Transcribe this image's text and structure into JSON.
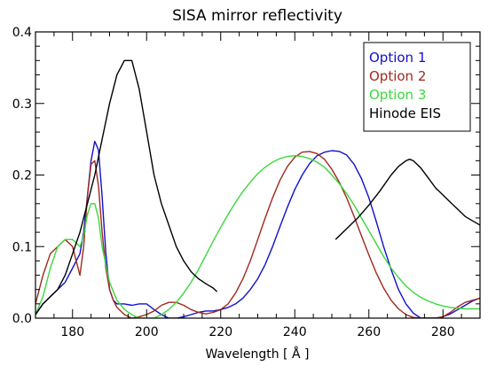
{
  "chart_data": {
    "type": "line",
    "title": "SISA mirror reflectivity",
    "xlabel": "Wavelength [ Å ]",
    "ylabel": "",
    "xlim": [
      170,
      290
    ],
    "ylim": [
      0,
      0.4
    ],
    "xticks": [
      180,
      200,
      220,
      240,
      260,
      280
    ],
    "yticks": [
      0.0,
      0.1,
      0.2,
      0.3,
      0.4
    ],
    "xtick_labels": [
      "180",
      "200",
      "220",
      "240",
      "260",
      "280"
    ],
    "ytick_labels": [
      "0.0",
      "0.1",
      "0.2",
      "0.3",
      "0.4"
    ],
    "legend_position": "top-right",
    "grid": false,
    "series": [
      {
        "name": "Option 1",
        "color": "#1010d0",
        "x": [
          170,
          172,
          174,
          176,
          178,
          180,
          182,
          183,
          184,
          185,
          186,
          187,
          188,
          189,
          190,
          191,
          192,
          194,
          196,
          198,
          200,
          202,
          204,
          206,
          208,
          210,
          212,
          214,
          216,
          218,
          220,
          222,
          224,
          226,
          228,
          230,
          232,
          234,
          236,
          238,
          240,
          242,
          244,
          246,
          248,
          250,
          252,
          254,
          256,
          258,
          260,
          262,
          264,
          266,
          268,
          270,
          272,
          274,
          276,
          278,
          280,
          282,
          284,
          286,
          288,
          290
        ],
        "y": [
          0.005,
          0.02,
          0.03,
          0.04,
          0.05,
          0.07,
          0.09,
          0.12,
          0.17,
          0.22,
          0.247,
          0.235,
          0.17,
          0.09,
          0.04,
          0.025,
          0.02,
          0.02,
          0.018,
          0.02,
          0.02,
          0.012,
          0.005,
          0.0,
          0.0,
          0.002,
          0.005,
          0.008,
          0.01,
          0.01,
          0.012,
          0.015,
          0.02,
          0.028,
          0.04,
          0.055,
          0.075,
          0.1,
          0.128,
          0.155,
          0.18,
          0.2,
          0.216,
          0.227,
          0.232,
          0.234,
          0.233,
          0.228,
          0.215,
          0.195,
          0.168,
          0.135,
          0.1,
          0.068,
          0.04,
          0.02,
          0.007,
          0.0,
          0.0,
          0.0,
          0.002,
          0.006,
          0.012,
          0.018,
          0.024,
          0.028
        ]
      },
      {
        "name": "Option 2",
        "color": "#a0281e",
        "x": [
          170,
          172,
          174,
          176,
          178,
          180,
          181,
          182,
          183,
          184,
          185,
          186,
          187,
          188,
          189,
          190,
          191,
          192,
          194,
          196,
          198,
          200,
          202,
          204,
          206,
          208,
          210,
          212,
          214,
          216,
          218,
          220,
          222,
          224,
          226,
          228,
          230,
          232,
          234,
          236,
          238,
          240,
          242,
          244,
          246,
          248,
          250,
          252,
          254,
          256,
          258,
          260,
          262,
          264,
          266,
          268,
          270,
          272,
          274,
          276,
          278,
          280,
          282,
          284,
          286,
          288,
          290
        ],
        "y": [
          0.02,
          0.06,
          0.09,
          0.1,
          0.11,
          0.1,
          0.08,
          0.06,
          0.1,
          0.17,
          0.215,
          0.22,
          0.185,
          0.12,
          0.07,
          0.04,
          0.025,
          0.015,
          0.005,
          0.0,
          0.002,
          0.005,
          0.01,
          0.018,
          0.022,
          0.022,
          0.018,
          0.012,
          0.008,
          0.006,
          0.008,
          0.012,
          0.02,
          0.035,
          0.055,
          0.08,
          0.11,
          0.14,
          0.168,
          0.193,
          0.212,
          0.225,
          0.232,
          0.233,
          0.23,
          0.222,
          0.208,
          0.19,
          0.168,
          0.142,
          0.115,
          0.088,
          0.063,
          0.042,
          0.025,
          0.013,
          0.005,
          0.001,
          0.0,
          0.0,
          0.0,
          0.002,
          0.008,
          0.016,
          0.022,
          0.025,
          0.028
        ]
      },
      {
        "name": "Option 3",
        "color": "#3cd83c",
        "x": [
          170,
          172,
          174,
          176,
          178,
          180,
          182,
          183,
          184,
          185,
          186,
          187,
          188,
          190,
          192,
          194,
          196,
          198,
          200,
          202,
          204,
          206,
          208,
          210,
          212,
          214,
          216,
          218,
          220,
          222,
          224,
          226,
          228,
          230,
          232,
          234,
          236,
          238,
          240,
          242,
          244,
          246,
          248,
          250,
          252,
          254,
          256,
          258,
          260,
          262,
          264,
          266,
          268,
          270,
          272,
          274,
          276,
          278,
          280,
          282,
          284,
          286,
          288,
          290
        ],
        "y": [
          0.005,
          0.03,
          0.07,
          0.1,
          0.11,
          0.11,
          0.1,
          0.115,
          0.145,
          0.16,
          0.16,
          0.14,
          0.1,
          0.05,
          0.025,
          0.012,
          0.005,
          0.0,
          0.0,
          0.0,
          0.005,
          0.012,
          0.022,
          0.035,
          0.05,
          0.068,
          0.088,
          0.108,
          0.127,
          0.145,
          0.162,
          0.177,
          0.19,
          0.202,
          0.211,
          0.218,
          0.223,
          0.226,
          0.227,
          0.226,
          0.223,
          0.218,
          0.211,
          0.2,
          0.188,
          0.174,
          0.158,
          0.14,
          0.122,
          0.104,
          0.086,
          0.07,
          0.057,
          0.045,
          0.036,
          0.029,
          0.024,
          0.02,
          0.017,
          0.015,
          0.014,
          0.013,
          0.013,
          0.013
        ]
      },
      {
        "name": "Hinode EIS",
        "color": "#000000",
        "segments": [
          {
            "x": [
              170,
              172,
              174,
              176,
              178,
              180,
              182,
              184,
              186,
              188,
              190,
              192,
              194,
              196,
              198,
              200,
              202,
              204,
              206,
              208,
              210,
              212,
              214,
              216,
              218,
              219
            ],
            "y": [
              0.005,
              0.02,
              0.03,
              0.04,
              0.06,
              0.09,
              0.12,
              0.16,
              0.2,
              0.25,
              0.3,
              0.34,
              0.36,
              0.36,
              0.32,
              0.26,
              0.2,
              0.16,
              0.13,
              0.1,
              0.08,
              0.065,
              0.055,
              0.048,
              0.042,
              0.037
            ]
          },
          {
            "x": [
              251,
              254,
              257,
              260,
              263,
              266,
              268,
              270,
              271,
              272,
              274,
              276,
              278,
              280,
              282,
              284,
              286,
              288,
              290
            ],
            "y": [
              0.11,
              0.125,
              0.14,
              0.158,
              0.178,
              0.2,
              0.212,
              0.22,
              0.222,
              0.22,
              0.21,
              0.196,
              0.182,
              0.172,
              0.162,
              0.152,
              0.142,
              0.136,
              0.13
            ]
          }
        ]
      }
    ]
  }
}
